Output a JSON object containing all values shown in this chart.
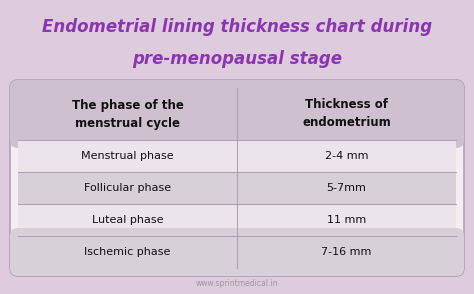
{
  "title_line1": "Endometrial lining thickness chart during",
  "title_line2": "pre-menopausal stage",
  "title_color": "#8b35b0",
  "bg_color": "#deccde",
  "table_bg": "#f2eef2",
  "header_bg": "#cec0ce",
  "row_bg_light": "#ebe5eb",
  "row_bg_dark": "#d8d0d8",
  "col1_header": "The phase of the\nmenstrual cycle",
  "col2_header": "Thickness of\nendometrium",
  "phases": [
    "Menstrual phase",
    "Follicular phase",
    "Luteal phase",
    "Ischemic phase"
  ],
  "thicknesses": [
    "2-4 mm",
    "5-7mm",
    "11 mm",
    "7-16 mm"
  ],
  "divider_color": "#b0a0b8",
  "footer_text": "www.sprintmedical.in",
  "footer_color": "#999999",
  "fig_width": 4.74,
  "fig_height": 2.94,
  "dpi": 100
}
